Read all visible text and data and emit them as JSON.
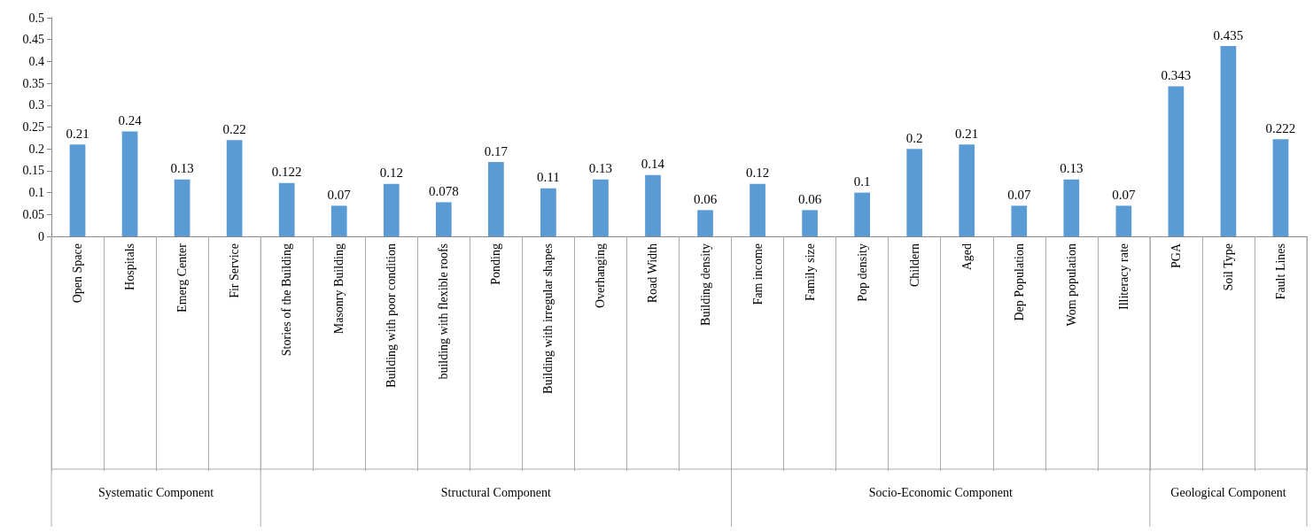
{
  "chart_data": {
    "type": "bar",
    "categories": [
      "Open Space",
      "Hospitals",
      "Emerg Center",
      "Fir Service",
      "Stories of the Building",
      "Masonry Building",
      "Building with poor condition",
      "building with flexible roofs",
      "Ponding",
      "Building with irregular shapes",
      "Overhanging",
      "Road Width",
      "Building density",
      "Fam income",
      "Family size",
      "Pop density",
      "Childern",
      "Aged",
      "Dep Population",
      "Wom population",
      "Illiteracy rate",
      "PGA",
      "Soil Type",
      "Fault Lines"
    ],
    "values": [
      0.21,
      0.24,
      0.13,
      0.22,
      0.122,
      0.07,
      0.12,
      0.078,
      0.17,
      0.11,
      0.13,
      0.14,
      0.06,
      0.12,
      0.06,
      0.1,
      0.2,
      0.21,
      0.07,
      0.13,
      0.07,
      0.343,
      0.435,
      0.222
    ],
    "color": "#5b9bd5",
    "ylim": [
      0,
      0.5
    ],
    "yticks": [
      0,
      0.05,
      0.1,
      0.15,
      0.2,
      0.25,
      0.3,
      0.35,
      0.4,
      0.45,
      0.5
    ],
    "data_labels": true,
    "grid": false,
    "annotations": [
      "Systematic Component",
      "Structural Component",
      "Socio-Economic Component",
      "Geological Component"
    ]
  }
}
